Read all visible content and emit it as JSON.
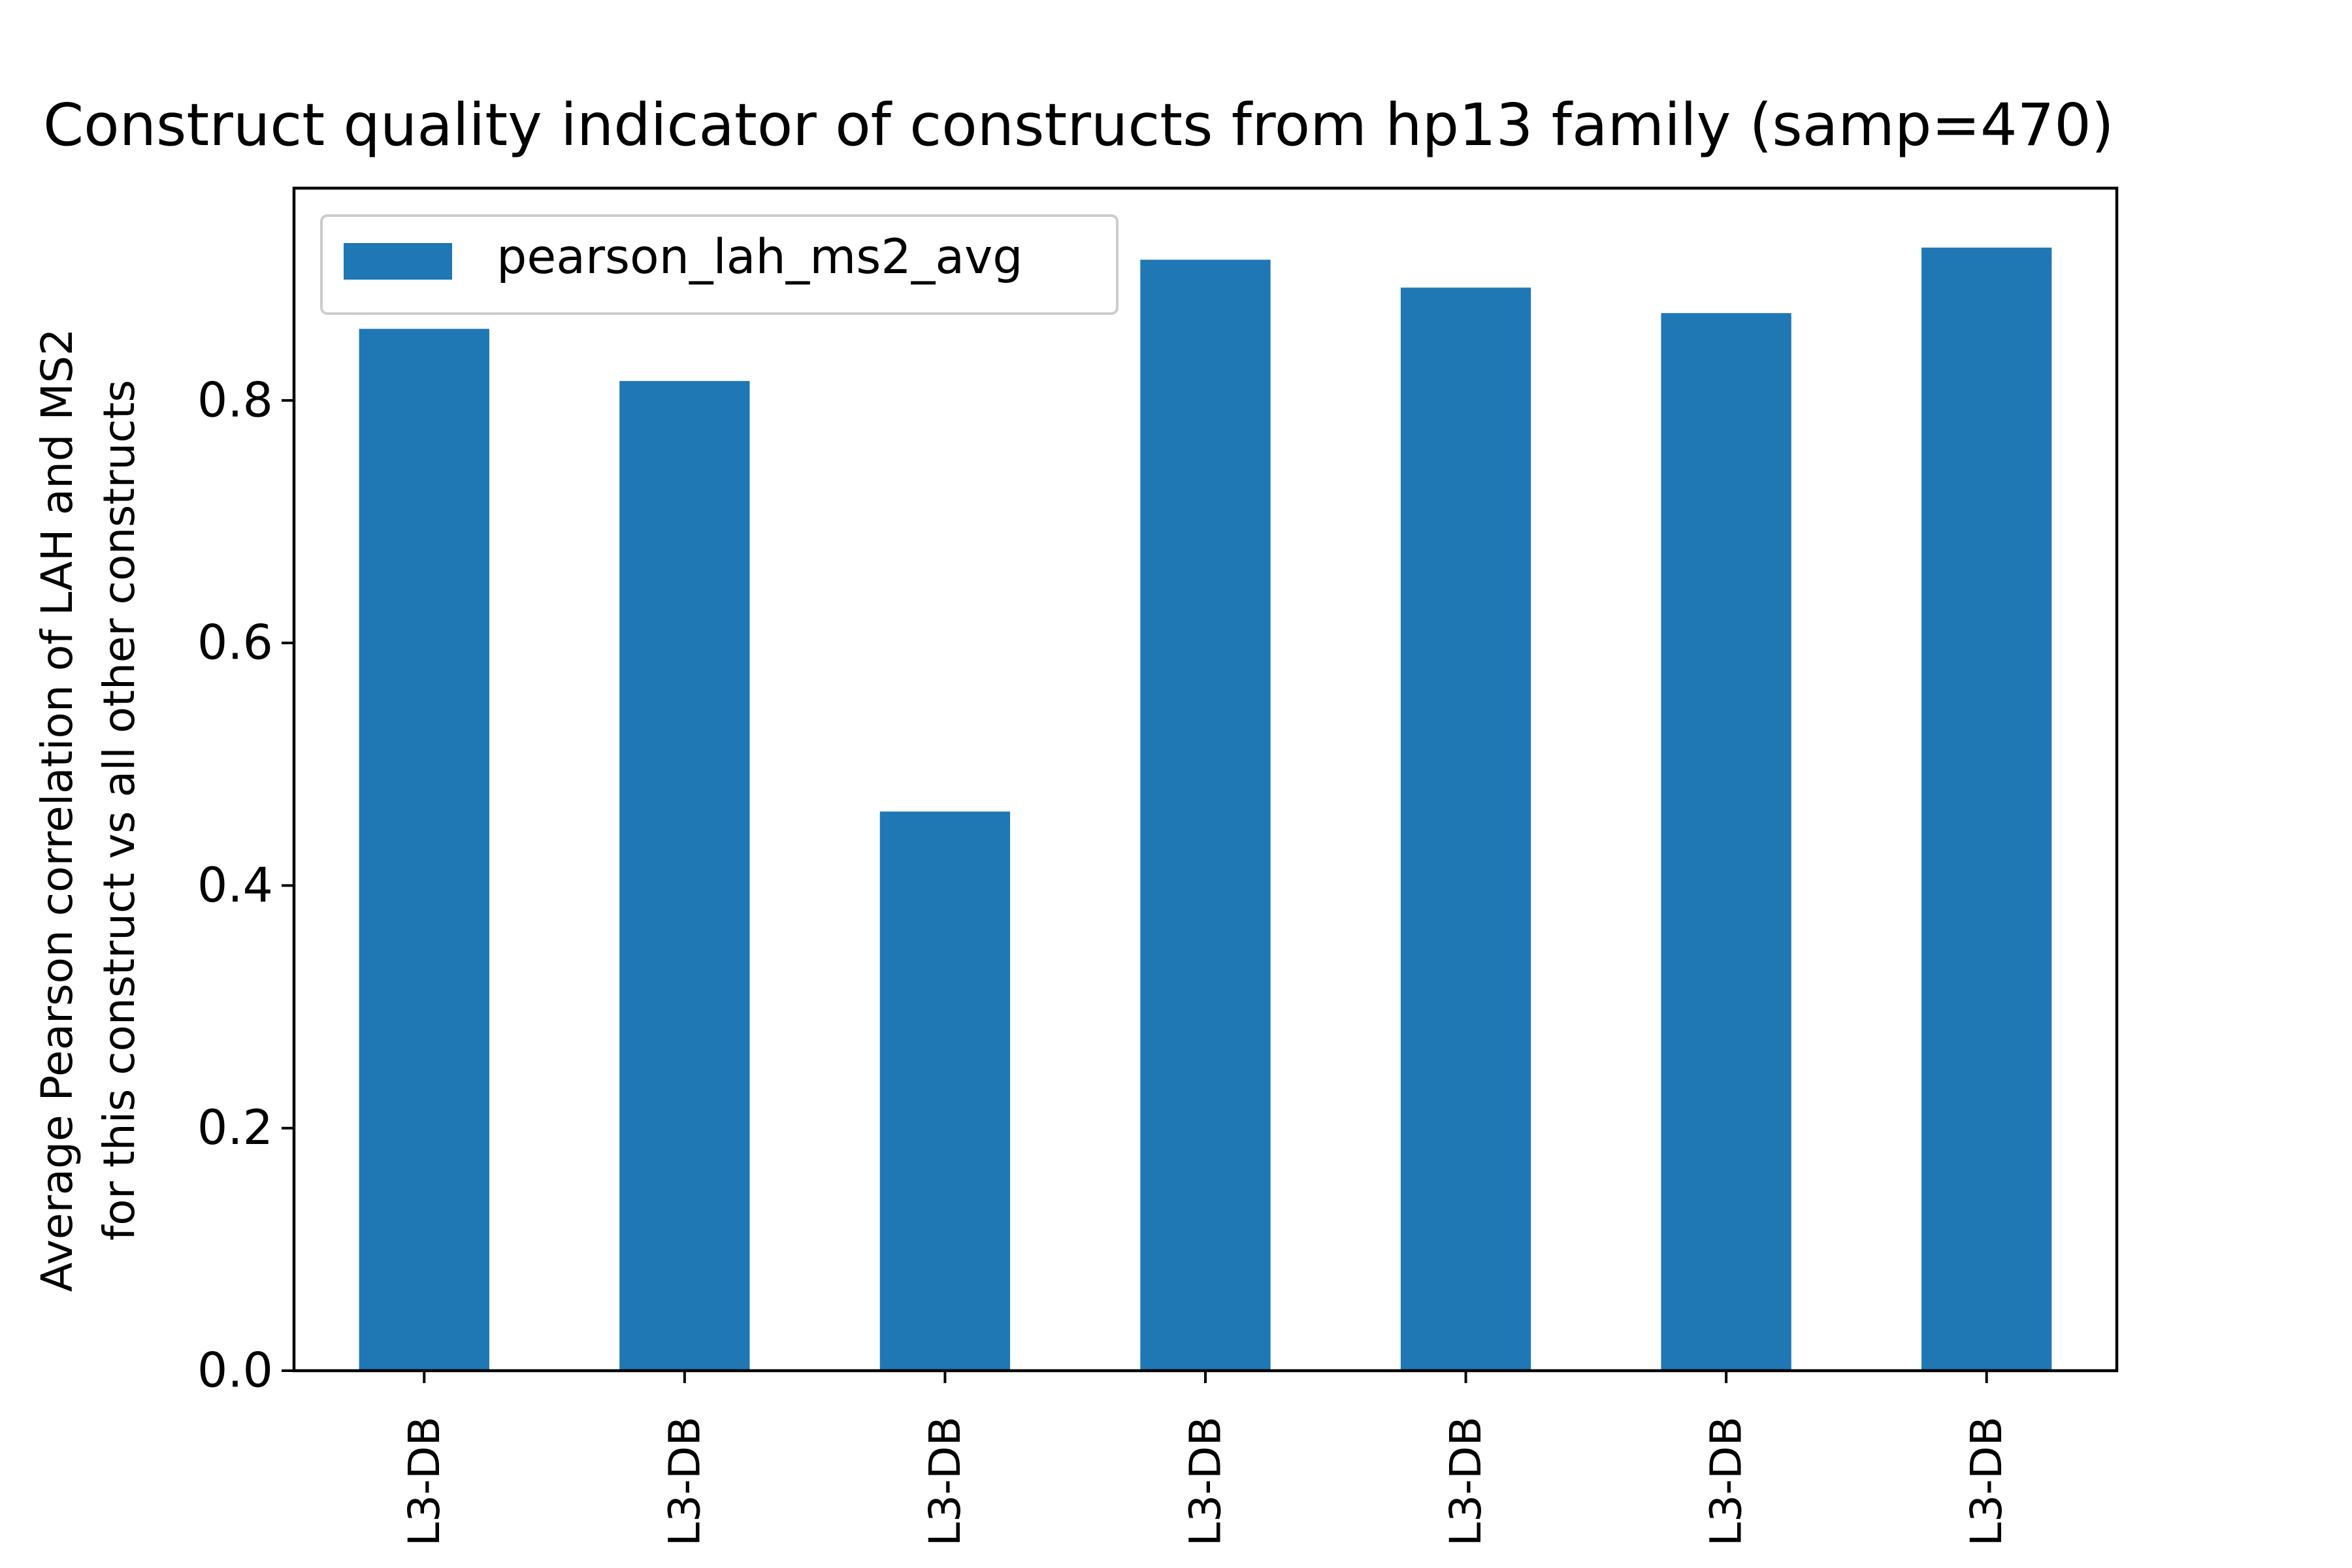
{
  "chart_data": {
    "type": "bar",
    "title": "Construct quality indicator of constructs from hp13 family (samp=470)",
    "ylabel_lines": [
      "Average Pearson correlation of LAH and MS2",
      "for this construct vs all other constructs"
    ],
    "xlabel": "",
    "categories": [
      "L3-DB",
      "L3-DB",
      "L3-DB",
      "L3-DB",
      "L3-DB",
      "L3-DB",
      "L3-DB"
    ],
    "series": [
      {
        "name": "pearson_lah_ms2_avg",
        "color": "#1f77b4",
        "values": [
          0.859,
          0.816,
          0.461,
          0.916,
          0.893,
          0.872,
          0.926
        ]
      }
    ],
    "ylim": [
      0,
      0.975
    ],
    "yticks": [
      0.0,
      0.2,
      0.4,
      0.6,
      0.8
    ],
    "ytick_labels": [
      "0.0",
      "0.2",
      "0.4",
      "0.6",
      "0.8"
    ],
    "legend_position": "upper-left",
    "grid": false
  }
}
